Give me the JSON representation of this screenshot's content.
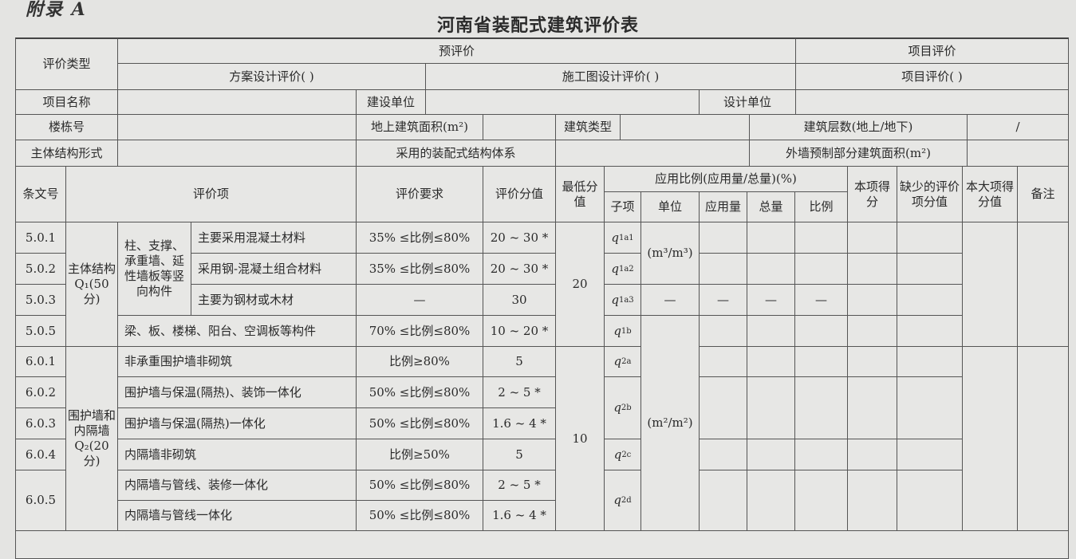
{
  "appendix": "附录 A",
  "title": "河南省装配式建筑评价表",
  "header": {
    "eval_type": "评价类型",
    "pre_eval": "预评价",
    "project_eval": "项目评价",
    "scheme_design": "方案设计评价(   )",
    "construction_drawing": "施工图设计评价(   )",
    "project_eval_check": "项目评价(   )",
    "project_name": "项目名称",
    "builder": "建设单位",
    "designer": "设计单位",
    "building_no": "楼栋号",
    "above_ground_area": "地上建筑面积(m²)",
    "building_type": "建筑类型",
    "floors": "建筑层数(地上/地下)",
    "floors_value": "/",
    "structure_form": "主体结构形式",
    "prefab_system": "采用的装配式结构体系",
    "exterior_wall_area": "外墙预制部分建筑面积(m²)"
  },
  "columns": {
    "clause": "条文号",
    "item": "评价项",
    "requirement": "评价要求",
    "score": "评价分值",
    "min_score": "最低分值",
    "ratio": "应用比例(应用量/总量)(%)",
    "sub": "子项",
    "unit": "单位",
    "applied": "应用量",
    "total": "总量",
    "ratio_col": "比例",
    "item_score": "本项得分",
    "missing": "缺少的评价项分值",
    "category_score": "本大项得分值",
    "remarks": "备注"
  },
  "groups": [
    {
      "name": "主体结构Q₁(50分)",
      "min_score": "20"
    },
    {
      "name": "围护墙和内隔墙Q₂(20分)",
      "min_score": "10"
    }
  ],
  "vertical_members": "柱、支撑、承重墙、延性墙板等竖向构件",
  "rows": [
    {
      "clause": "5.0.1",
      "item": "主要采用混凝土材料",
      "requirement": "35% ≤比例≤80%",
      "score": "20 ~ 30 *"
    },
    {
      "clause": "5.0.2",
      "item": "采用钢-混凝土组合材料",
      "requirement": "35% ≤比例≤80%",
      "score": "20 ~ 30 *"
    },
    {
      "clause": "5.0.3",
      "item": "主要为钢材或木材",
      "requirement": "—",
      "score": "30"
    },
    {
      "clause": "5.0.5",
      "item": "梁、板、楼梯、阳台、空调板等构件",
      "requirement": "70% ≤比例≤80%",
      "score": "10 ~ 20 *"
    },
    {
      "clause": "6.0.1",
      "item": "非承重围护墙非砌筑",
      "requirement": "比例≥80%",
      "score": "5"
    },
    {
      "clause": "6.0.2",
      "item": "围护墙与保温(隔热)、装饰一体化",
      "requirement": "50% ≤比例≤80%",
      "score": "2 ~ 5 *"
    },
    {
      "clause": "6.0.3",
      "item": "围护墙与保温(隔热)一体化",
      "requirement": "50% ≤比例≤80%",
      "score": "1.6 ~ 4 *"
    },
    {
      "clause": "6.0.4",
      "item": "内隔墙非砌筑",
      "requirement": "比例≥50%",
      "score": "5"
    },
    {
      "clause": "6.0.5",
      "item": "内隔墙与管线、装修一体化",
      "requirement": "50% ≤比例≤80%",
      "score": "2 ~ 5 *"
    },
    {
      "clause": "",
      "item": "内隔墙与管线一体化",
      "requirement": "50% ≤比例≤80%",
      "score": "1.6 ~ 4 *"
    }
  ],
  "subitems": [
    {
      "sym": "q",
      "sub": "1a1"
    },
    {
      "sym": "q",
      "sub": "1a2"
    },
    {
      "sym": "q",
      "sub": "1a3"
    },
    {
      "sym": "q",
      "sub": "1b"
    },
    {
      "sym": "q",
      "sub": "2a"
    },
    {
      "sym": "q",
      "sub": "2b"
    },
    {
      "sym": "q",
      "sub": "2c"
    },
    {
      "sym": "q",
      "sub": "2d"
    }
  ],
  "units": {
    "volume": "(m³/m³)",
    "area": "(m²/m²)",
    "dash": "—"
  }
}
